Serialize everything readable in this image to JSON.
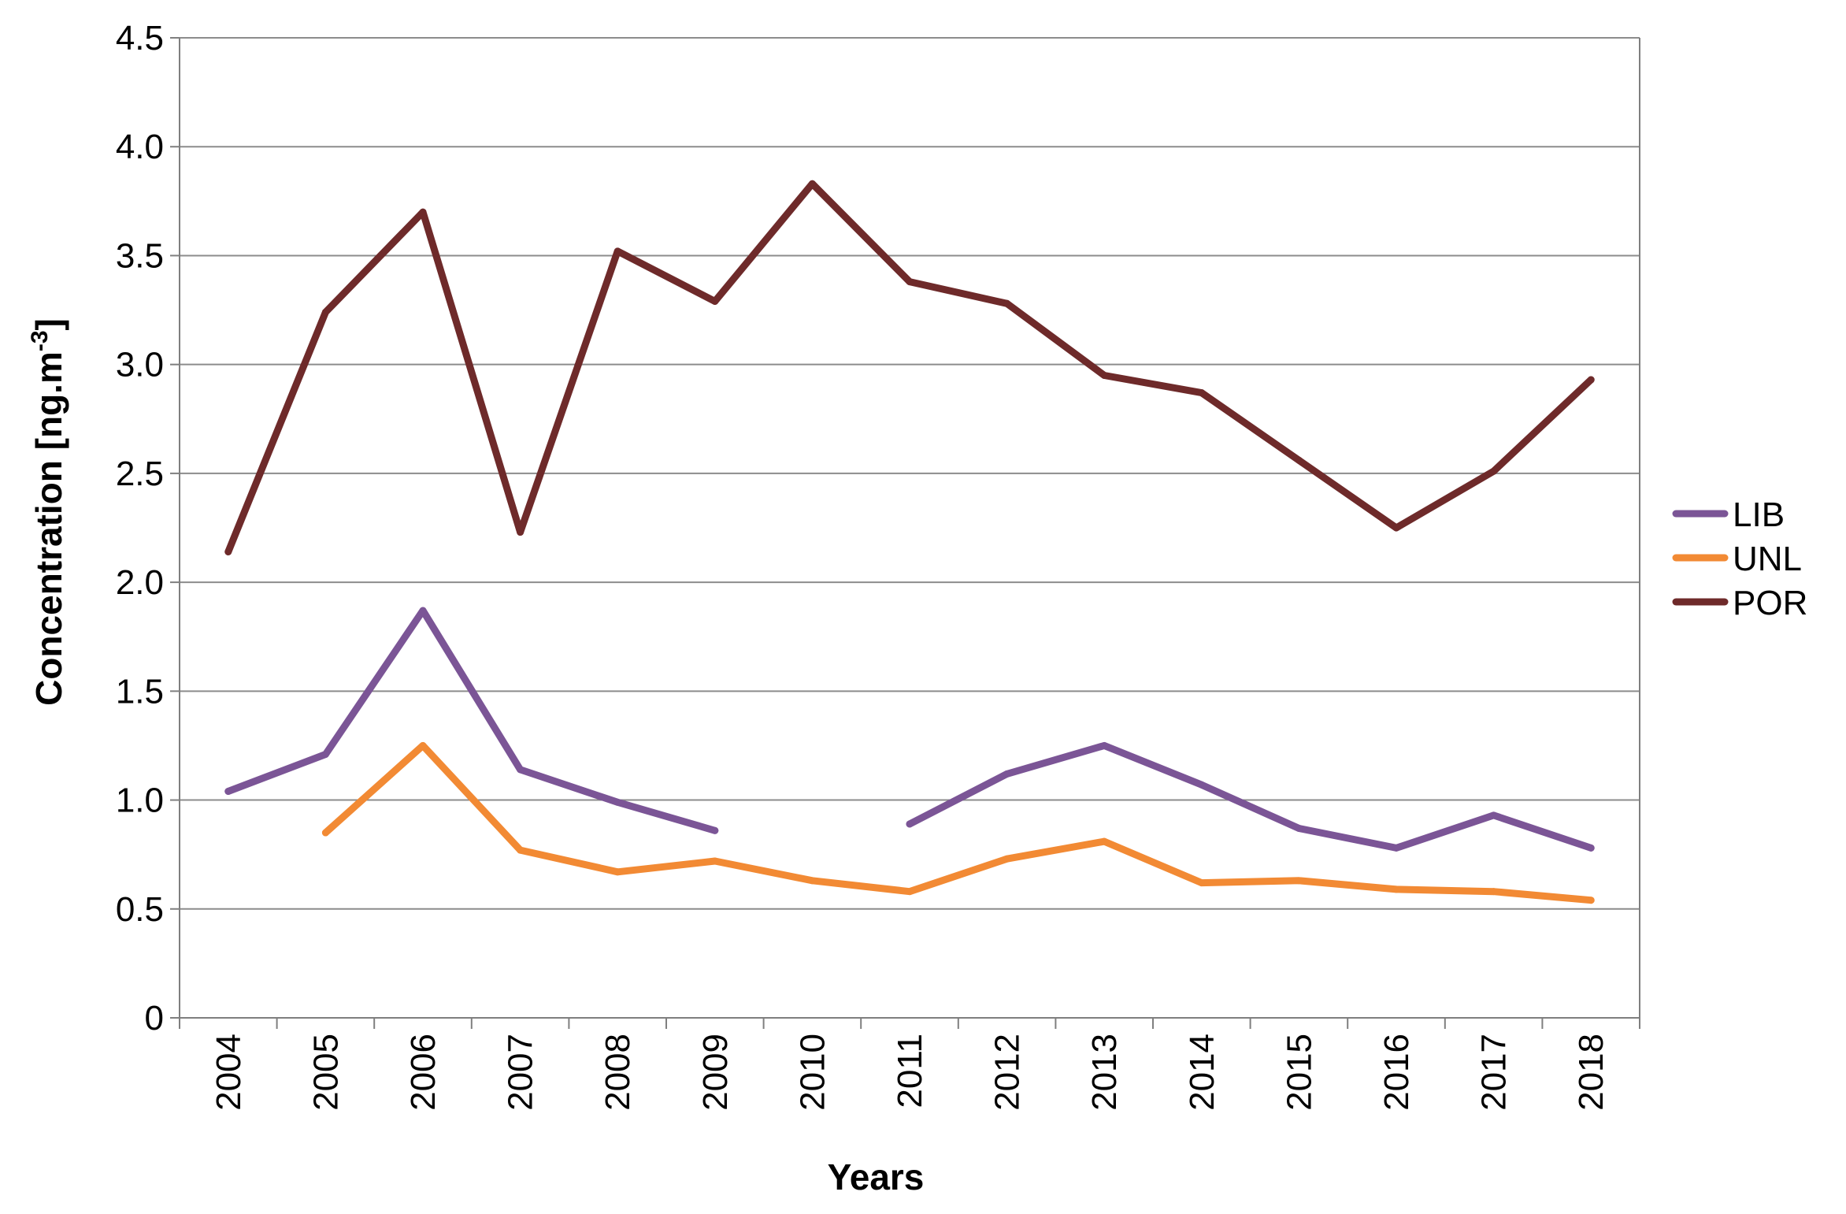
{
  "chart_data": {
    "type": "line",
    "title": "",
    "xlabel": "Years",
    "ylabel": {
      "main": "Concentration [ng.m",
      "sup": "-3",
      "close": "]"
    },
    "categories": [
      "2004",
      "2005",
      "2006",
      "2007",
      "2008",
      "2009",
      "2010",
      "2011",
      "2012",
      "2013",
      "2014",
      "2015",
      "2016",
      "2017",
      "2018"
    ],
    "ylim": [
      0,
      4.5
    ],
    "yticks": [
      0,
      0.5,
      1.0,
      1.5,
      2.0,
      2.5,
      3.0,
      3.5,
      4.0,
      4.5
    ],
    "ytick_labels": [
      "0",
      "0.5",
      "1.0",
      "1.5",
      "2.0",
      "2.5",
      "3.0",
      "3.5",
      "4.0",
      "4.5"
    ],
    "grid": "horizontal",
    "legend_position": "right",
    "series": [
      {
        "name": "LIB",
        "color": "#7b5596",
        "values": [
          1.04,
          1.21,
          1.87,
          1.14,
          0.99,
          0.86,
          null,
          0.89,
          1.12,
          1.25,
          1.07,
          0.87,
          0.78,
          0.93,
          0.78
        ]
      },
      {
        "name": "UNL",
        "color": "#f28a34",
        "values": [
          null,
          0.85,
          1.25,
          0.77,
          0.67,
          0.72,
          0.63,
          0.58,
          0.73,
          0.81,
          0.62,
          0.63,
          0.59,
          0.58,
          0.54
        ]
      },
      {
        "name": "POR",
        "color": "#6e2a2a",
        "values": [
          2.14,
          3.24,
          3.7,
          2.23,
          3.52,
          3.29,
          3.83,
          3.38,
          3.28,
          2.95,
          2.87,
          2.56,
          2.25,
          2.51,
          2.93
        ]
      }
    ]
  }
}
